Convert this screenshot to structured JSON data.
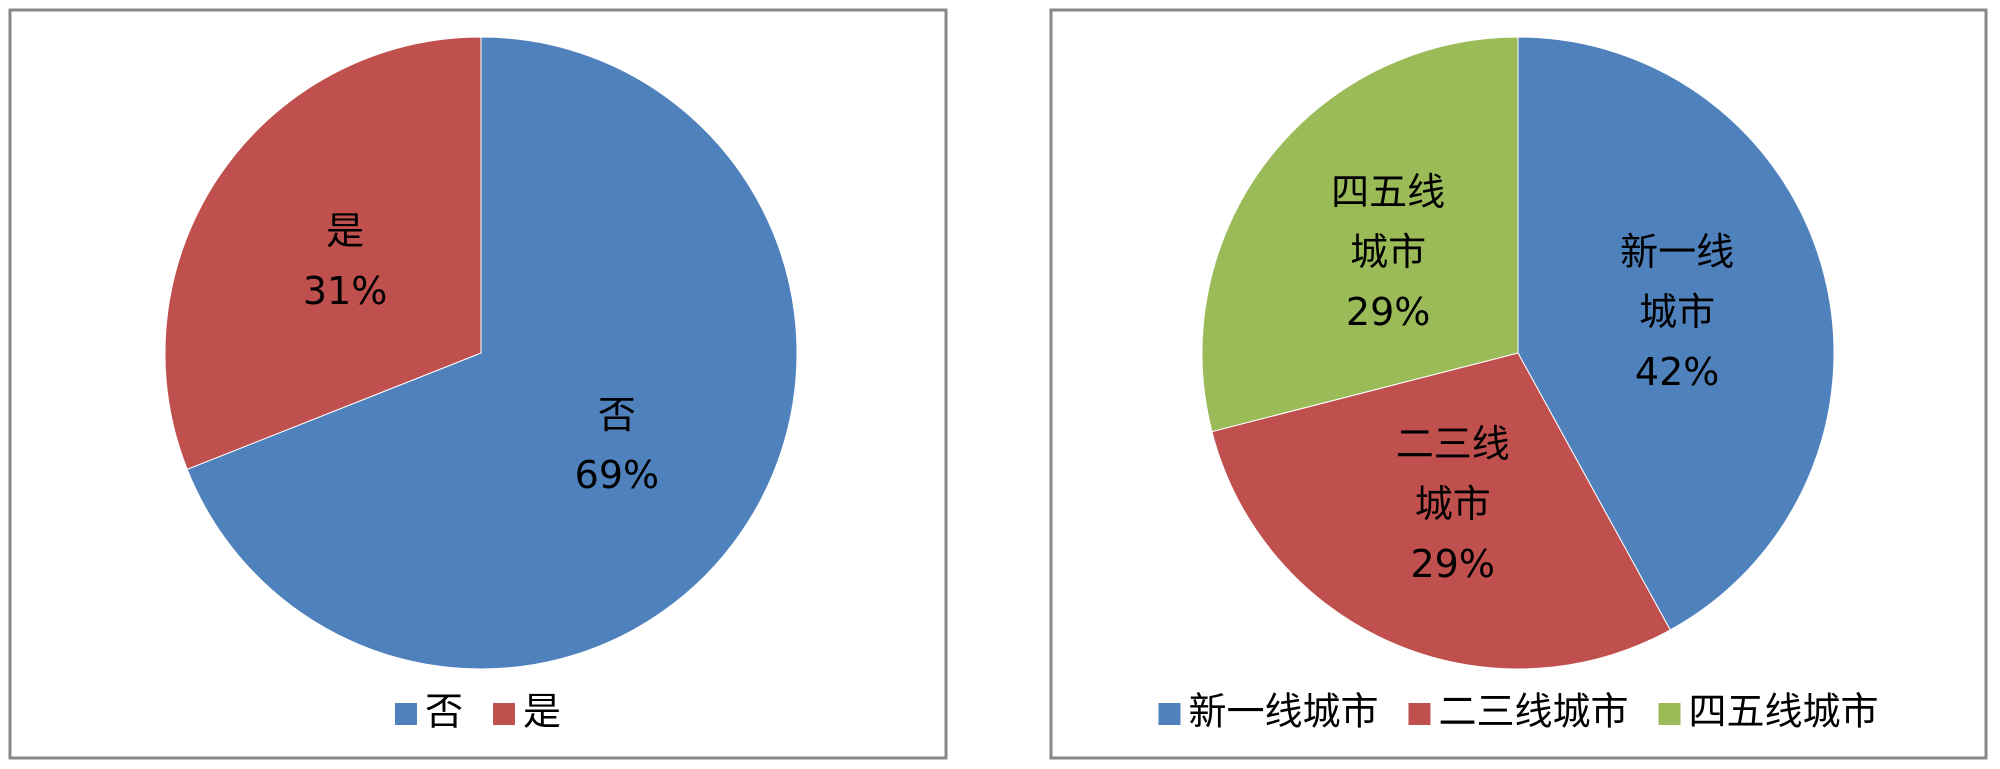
{
  "chart_data": [
    {
      "type": "pie",
      "categories": [
        "否",
        "是"
      ],
      "values": [
        69,
        31
      ],
      "value_labels": [
        "69%",
        "31%"
      ],
      "colors": [
        "#4f81bd",
        "#c0504d"
      ],
      "legend": "bottom"
    },
    {
      "type": "pie",
      "categories": [
        "新一线城市",
        "二三线城市",
        "四五线城市"
      ],
      "values": [
        42,
        29,
        29
      ],
      "value_labels": [
        "42%",
        "29%",
        "29%"
      ],
      "colors": [
        "#4f81bd",
        "#c0504d",
        "#9bbb59"
      ],
      "legend": "bottom"
    }
  ]
}
